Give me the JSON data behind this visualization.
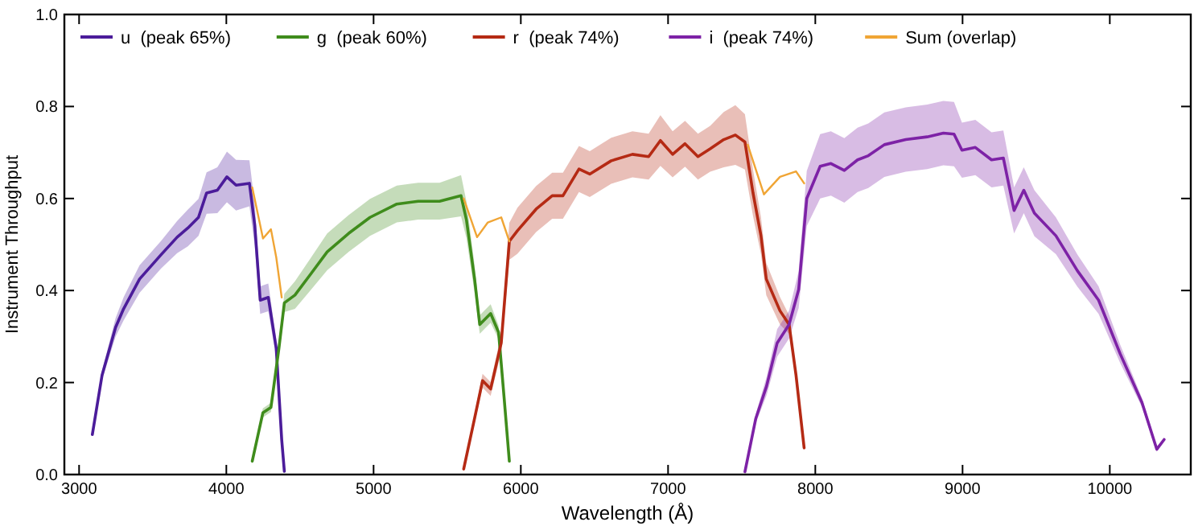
{
  "chart_data": {
    "type": "line",
    "xlabel": "Wavelength (Å)",
    "ylabel": "Instrument Throughput",
    "xlim": [
      2900,
      10550
    ],
    "ylim": [
      0,
      1
    ],
    "xticks": [
      3000,
      4000,
      5000,
      6000,
      7000,
      8000,
      9000,
      10000
    ],
    "yticks": [
      {
        "value": 0,
        "label": "0.0"
      },
      {
        "value": 0.2,
        "label": "0.2"
      },
      {
        "value": 0.4,
        "label": "0.4"
      },
      {
        "value": 0.6,
        "label": "0.6"
      },
      {
        "value": 0.8,
        "label": "0.8"
      },
      {
        "value": 1,
        "label": "1.0"
      }
    ],
    "grid": false,
    "legend": "top left",
    "line_style": "solid",
    "marker": "none",
    "series": [
      {
        "name": "u  (peak 65%)",
        "color": "#4b1c9a",
        "x": [
          3090,
          3156,
          3248,
          3302,
          3411,
          3557,
          3666,
          3739,
          3811,
          3866,
          3939,
          4004,
          4066,
          4157,
          4193,
          4230,
          4285,
          4339,
          4376,
          4394
        ],
        "values": [
          0.087,
          0.216,
          0.32,
          0.36,
          0.425,
          0.478,
          0.516,
          0.536,
          0.559,
          0.612,
          0.618,
          0.647,
          0.629,
          0.633,
          0.542,
          0.379,
          0.385,
          0.274,
          0.076,
          0.007
        ],
        "lower": [
          0.082,
          0.206,
          0.3,
          0.335,
          0.395,
          0.448,
          0.481,
          0.496,
          0.519,
          0.567,
          0.568,
          0.592,
          0.574,
          0.583,
          0.497,
          0.349,
          0.355,
          0.254,
          0.066,
          0.002
        ],
        "upper": [
          0.092,
          0.226,
          0.34,
          0.385,
          0.455,
          0.508,
          0.551,
          0.576,
          0.599,
          0.657,
          0.668,
          0.702,
          0.684,
          0.683,
          0.587,
          0.409,
          0.415,
          0.294,
          0.086,
          0.012
        ]
      },
      {
        "name": "g  (peak 60%)",
        "color": "#3f8c1c",
        "x": [
          4176,
          4248,
          4303,
          4357,
          4394,
          4466,
          4576,
          4685,
          4830,
          4976,
          5158,
          5303,
          5448,
          5594,
          5631,
          5686,
          5721,
          5795,
          5849,
          5886,
          5922
        ],
        "values": [
          0.029,
          0.134,
          0.146,
          0.274,
          0.373,
          0.39,
          0.437,
          0.484,
          0.524,
          0.559,
          0.588,
          0.594,
          0.594,
          0.606,
          0.553,
          0.425,
          0.326,
          0.35,
          0.309,
          0.169,
          0.029
        ],
        "lower": [
          0.024,
          0.124,
          0.136,
          0.259,
          0.353,
          0.36,
          0.402,
          0.444,
          0.484,
          0.519,
          0.548,
          0.554,
          0.554,
          0.561,
          0.513,
          0.395,
          0.306,
          0.33,
          0.294,
          0.159,
          0.024
        ],
        "upper": [
          0.034,
          0.144,
          0.156,
          0.289,
          0.393,
          0.42,
          0.472,
          0.524,
          0.564,
          0.599,
          0.628,
          0.634,
          0.634,
          0.651,
          0.593,
          0.455,
          0.346,
          0.37,
          0.324,
          0.179,
          0.034
        ]
      },
      {
        "name": "r  (peak 74%)",
        "color": "#b52a14",
        "x": [
          5612,
          5686,
          5740,
          5795,
          5867,
          5922,
          5977,
          6104,
          6213,
          6286,
          6395,
          6468,
          6614,
          6758,
          6868,
          6948,
          7031,
          7115,
          7203,
          7286,
          7378,
          7457,
          7522,
          7577,
          7631,
          7667,
          7760,
          7822,
          7869,
          7924
        ],
        "values": [
          0.012,
          0.122,
          0.204,
          0.186,
          0.286,
          0.507,
          0.53,
          0.577,
          0.606,
          0.606,
          0.664,
          0.653,
          0.682,
          0.696,
          0.691,
          0.726,
          0.696,
          0.719,
          0.691,
          0.708,
          0.728,
          0.738,
          0.723,
          0.612,
          0.519,
          0.425,
          0.356,
          0.326,
          0.216,
          0.058
        ],
        "lower": [
          0.007,
          0.112,
          0.189,
          0.171,
          0.266,
          0.467,
          0.48,
          0.527,
          0.556,
          0.556,
          0.614,
          0.603,
          0.632,
          0.646,
          0.641,
          0.671,
          0.646,
          0.669,
          0.641,
          0.658,
          0.668,
          0.673,
          0.663,
          0.562,
          0.479,
          0.39,
          0.326,
          0.306,
          0.206,
          0.053
        ],
        "upper": [
          0.017,
          0.132,
          0.219,
          0.201,
          0.306,
          0.547,
          0.58,
          0.627,
          0.656,
          0.656,
          0.714,
          0.703,
          0.732,
          0.746,
          0.741,
          0.781,
          0.746,
          0.769,
          0.741,
          0.758,
          0.788,
          0.803,
          0.783,
          0.662,
          0.559,
          0.46,
          0.386,
          0.346,
          0.226,
          0.063
        ]
      },
      {
        "name": "i  (peak 74%)",
        "color": "#7d22a6",
        "x": [
          7522,
          7596,
          7669,
          7741,
          7822,
          7887,
          7942,
          8033,
          8106,
          8197,
          8287,
          8360,
          8469,
          8614,
          8760,
          8870,
          8942,
          8996,
          9087,
          9197,
          9277,
          9350,
          9416,
          9488,
          9634,
          9780,
          9924,
          10071,
          10218,
          10319,
          10369
        ],
        "values": [
          0.006,
          0.122,
          0.192,
          0.286,
          0.326,
          0.402,
          0.6,
          0.67,
          0.676,
          0.661,
          0.684,
          0.693,
          0.717,
          0.728,
          0.734,
          0.742,
          0.74,
          0.705,
          0.711,
          0.684,
          0.688,
          0.574,
          0.618,
          0.568,
          0.519,
          0.443,
          0.379,
          0.262,
          0.157,
          0.055,
          0.076
        ],
        "lower": [
          0.004,
          0.112,
          0.172,
          0.256,
          0.296,
          0.362,
          0.54,
          0.6,
          0.606,
          0.591,
          0.614,
          0.623,
          0.647,
          0.658,
          0.664,
          0.672,
          0.67,
          0.645,
          0.651,
          0.624,
          0.628,
          0.524,
          0.568,
          0.518,
          0.479,
          0.408,
          0.349,
          0.242,
          0.147,
          0.05,
          0.073
        ],
        "upper": [
          0.008,
          0.132,
          0.212,
          0.316,
          0.356,
          0.442,
          0.66,
          0.74,
          0.746,
          0.731,
          0.754,
          0.763,
          0.787,
          0.798,
          0.804,
          0.812,
          0.81,
          0.765,
          0.771,
          0.744,
          0.748,
          0.624,
          0.668,
          0.618,
          0.559,
          0.478,
          0.409,
          0.282,
          0.167,
          0.06,
          0.079
        ]
      },
      {
        "name": "Sum (overlap)",
        "color": "#f0a535",
        "x": [
          4176,
          4249,
          4303,
          4339,
          4376,
          5000,
          5612,
          5703,
          5776,
          5867,
          5922,
          6700,
          7541,
          7651,
          7760,
          7869,
          7924
        ],
        "values": [
          0.624,
          0.513,
          0.533,
          0.472,
          0.385,
          null,
          0.6,
          0.516,
          0.548,
          0.559,
          0.507,
          null,
          0.717,
          0.609,
          0.647,
          0.659,
          0.633
        ]
      }
    ]
  }
}
